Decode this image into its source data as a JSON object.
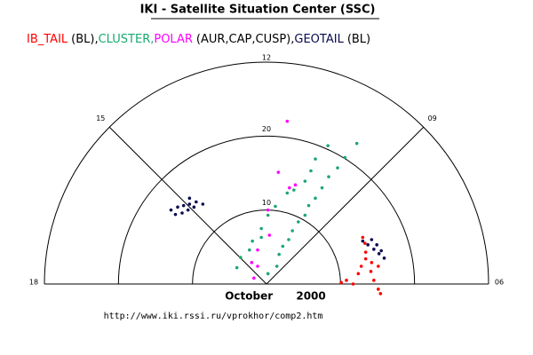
{
  "chart_data": {
    "type": "polar-scatter",
    "title": "IKI - Satellite Situation Center (SSC)",
    "caption": "October 2000",
    "source": "http://www.iki.rssi.ru/vprokhor/comp2.htm",
    "rlim": [
      0,
      30
    ],
    "rticks": [
      10,
      20
    ],
    "hour_ticks": [
      {
        "value": 18,
        "label": "18"
      },
      {
        "value": 15,
        "label": "15"
      },
      {
        "value": 12,
        "label": "12"
      },
      {
        "value": 9,
        "label": "09"
      },
      {
        "value": 6,
        "label": "06"
      }
    ],
    "series": [
      {
        "name": "IB_TAIL",
        "legend_suffix": "(BL),",
        "color": "#ff0000",
        "x": [
          10.1,
          10.8,
          11.7,
          12.4,
          12.8,
          13.4,
          14.2,
          15.1,
          14.1,
          14.5,
          15.1,
          15.4,
          13.4,
          13.3,
          13.0
        ],
        "y": [
          0.2,
          0.5,
          0.0,
          1.4,
          2.4,
          3.4,
          2.9,
          2.4,
          1.7,
          0.5,
          -0.7,
          -1.3,
          4.3,
          5.5,
          6.3
        ]
      },
      {
        "name": "CLUSTER,",
        "color": "#1aa870",
        "x": [
          8.3,
          6.6,
          6.0,
          5.2,
          3.7,
          2.8,
          1.2,
          0.2,
          -0.7,
          -0.7,
          -1.9,
          -2.3,
          -3.5,
          -4.0,
          12.2,
          10.6,
          9.6,
          8.4,
          7.5,
          6.6,
          5.7,
          5.2,
          4.3,
          3.5,
          3.0,
          2.2,
          1.7,
          1.4,
          0.2
        ],
        "y": [
          18.7,
          16.9,
          15.3,
          13.9,
          12.7,
          12.3,
          10.5,
          9.3,
          7.5,
          6.3,
          5.8,
          4.6,
          3.6,
          2.2,
          19.0,
          17.1,
          15.7,
          14.5,
          13.0,
          11.6,
          10.6,
          9.3,
          8.4,
          7.2,
          6.0,
          5.1,
          4.0,
          2.4,
          1.4
        ]
      },
      {
        "name": "POLAR",
        "legend_suffix": "(AUR,CAP,CUSP),",
        "color": "#ff00ff",
        "x": [
          2.8,
          1.6,
          3.9,
          3.1,
          0.2,
          0.4,
          -1.2,
          -2.0,
          -1.2,
          -1.7
        ],
        "y": [
          22.0,
          15.1,
          13.4,
          13.0,
          10.0,
          6.6,
          4.6,
          2.9,
          2.4,
          0.8
        ]
      },
      {
        "name": "GEOTAIL",
        "legend_suffix": "(BL)",
        "color": "#0a0a50",
        "x": [
          -12.9,
          -12.0,
          -11.2,
          -10.4,
          -9.5,
          -8.6,
          -12.3,
          -11.4,
          -10.6,
          -9.8,
          -10.4,
          13.0,
          13.7,
          14.5,
          15.2,
          15.9,
          14.2,
          14.9,
          15.5
        ],
        "y": [
          10.0,
          10.4,
          10.6,
          10.8,
          11.1,
          10.8,
          9.4,
          9.6,
          10.0,
          10.4,
          11.6,
          5.8,
          5.3,
          4.7,
          4.1,
          3.5,
          6.0,
          5.3,
          4.5
        ]
      }
    ]
  }
}
